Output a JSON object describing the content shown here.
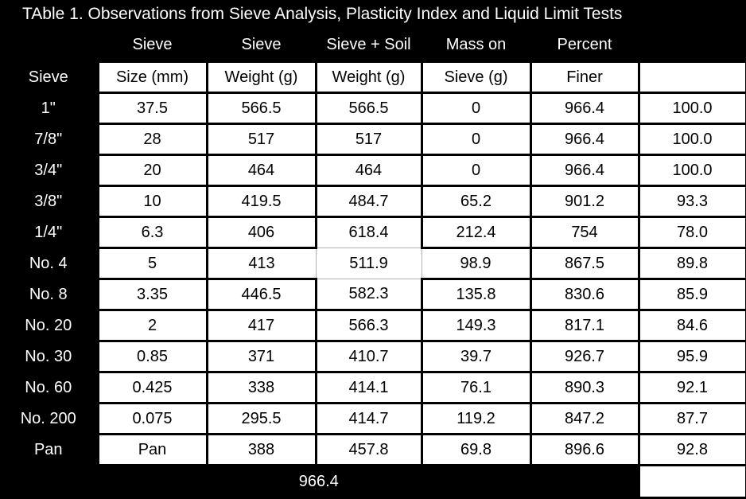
{
  "title": "TAble 1. Observations from Sieve Analysis, Plasticity Index and Liquid Limit Tests",
  "table": {
    "header_row1": [
      "",
      "Sieve",
      "Sieve",
      "Sieve + Soil",
      "Mass on",
      "Percent",
      ""
    ],
    "header_row2": [
      "Sieve",
      "Size (mm)",
      "Weight (g)",
      "Weight (g)",
      "Sieve (g)",
      "Finer",
      ""
    ],
    "rows": [
      {
        "label": "1\"",
        "cells": [
          "37.5",
          "566.5",
          "566.5",
          "0",
          "966.4",
          "100.0"
        ]
      },
      {
        "label": "7/8\"",
        "cells": [
          "28",
          "517",
          "517",
          "0",
          "966.4",
          "100.0"
        ]
      },
      {
        "label": "3/4\"",
        "cells": [
          "20",
          "464",
          "464",
          "0",
          "966.4",
          "100.0"
        ]
      },
      {
        "label": "3/8\"",
        "cells": [
          "10",
          "419.5",
          "484.7",
          "65.2",
          "901.2",
          "93.3"
        ]
      },
      {
        "label": "1/4\"",
        "cells": [
          "6.3",
          "406",
          "618.4",
          "212.4",
          "754",
          "78.0"
        ]
      },
      {
        "label": "No. 4",
        "cells": [
          "5",
          "413",
          "511.9",
          "98.9",
          "867.5",
          "89.8"
        ]
      },
      {
        "label": "No. 8",
        "cells": [
          "3.35",
          "446.5",
          "582.3",
          "135.8",
          "830.6",
          "85.9"
        ]
      },
      {
        "label": "No. 20",
        "cells": [
          "2",
          "417",
          "566.3",
          "149.3",
          "817.1",
          "84.6"
        ]
      },
      {
        "label": "No. 30",
        "cells": [
          "0.85",
          "371",
          "410.7",
          "39.7",
          "926.7",
          "95.9"
        ]
      },
      {
        "label": "No. 60",
        "cells": [
          "0.425",
          "338",
          "414.1",
          "76.1",
          "890.3",
          "92.1"
        ]
      },
      {
        "label": "No. 200",
        "cells": [
          "0.075",
          "295.5",
          "414.7",
          "119.2",
          "847.2",
          "87.7"
        ]
      },
      {
        "label": "Pan",
        "cells": [
          "Pan",
          "388",
          "457.8",
          "69.8",
          "896.6",
          "92.8"
        ]
      }
    ],
    "footer_total": "966.4"
  },
  "colors": {
    "background": "#000000",
    "cell_background": "#ffffff",
    "text_on_dark": "#ffffff",
    "text_on_light": "#000000",
    "thin_border": "#b3b3b3"
  },
  "chart_data": {
    "type": "table",
    "title": "TAble 1. Observations from Sieve Analysis, Plasticity Index and Liquid Limit Tests",
    "columns": [
      "Sieve",
      "Sieve Size (mm)",
      "Sieve Weight (g)",
      "Sieve + Soil Weight (g)",
      "Mass on Sieve (g)",
      "Percent Finer",
      ""
    ],
    "rows": [
      [
        "1\"",
        "37.5",
        "566.5",
        "566.5",
        "0",
        "966.4",
        "100.0"
      ],
      [
        "7/8\"",
        "28",
        "517",
        "517",
        "0",
        "966.4",
        "100.0"
      ],
      [
        "3/4\"",
        "20",
        "464",
        "464",
        "0",
        "966.4",
        "100.0"
      ],
      [
        "3/8\"",
        "10",
        "419.5",
        "484.7",
        "65.2",
        "901.2",
        "93.3"
      ],
      [
        "1/4\"",
        "6.3",
        "406",
        "618.4",
        "212.4",
        "754",
        "78.0"
      ],
      [
        "No. 4",
        "5",
        "413",
        "511.9",
        "98.9",
        "867.5",
        "89.8"
      ],
      [
        "No. 8",
        "3.35",
        "446.5",
        "582.3",
        "135.8",
        "830.6",
        "85.9"
      ],
      [
        "No. 20",
        "2",
        "417",
        "566.3",
        "149.3",
        "817.1",
        "84.6"
      ],
      [
        "No. 30",
        "0.85",
        "371",
        "410.7",
        "39.7",
        "926.7",
        "95.9"
      ],
      [
        "No. 60",
        "0.425",
        "338",
        "414.1",
        "76.1",
        "890.3",
        "92.1"
      ],
      [
        "No. 200",
        "0.075",
        "295.5",
        "414.7",
        "119.2",
        "847.2",
        "87.7"
      ],
      [
        "Pan",
        "Pan",
        "388",
        "457.8",
        "69.8",
        "896.6",
        "92.8"
      ]
    ],
    "footer_total": "966.4",
    "layout_hints": "white cells with black grid on black background; total row spans first six columns; last column has no header"
  }
}
